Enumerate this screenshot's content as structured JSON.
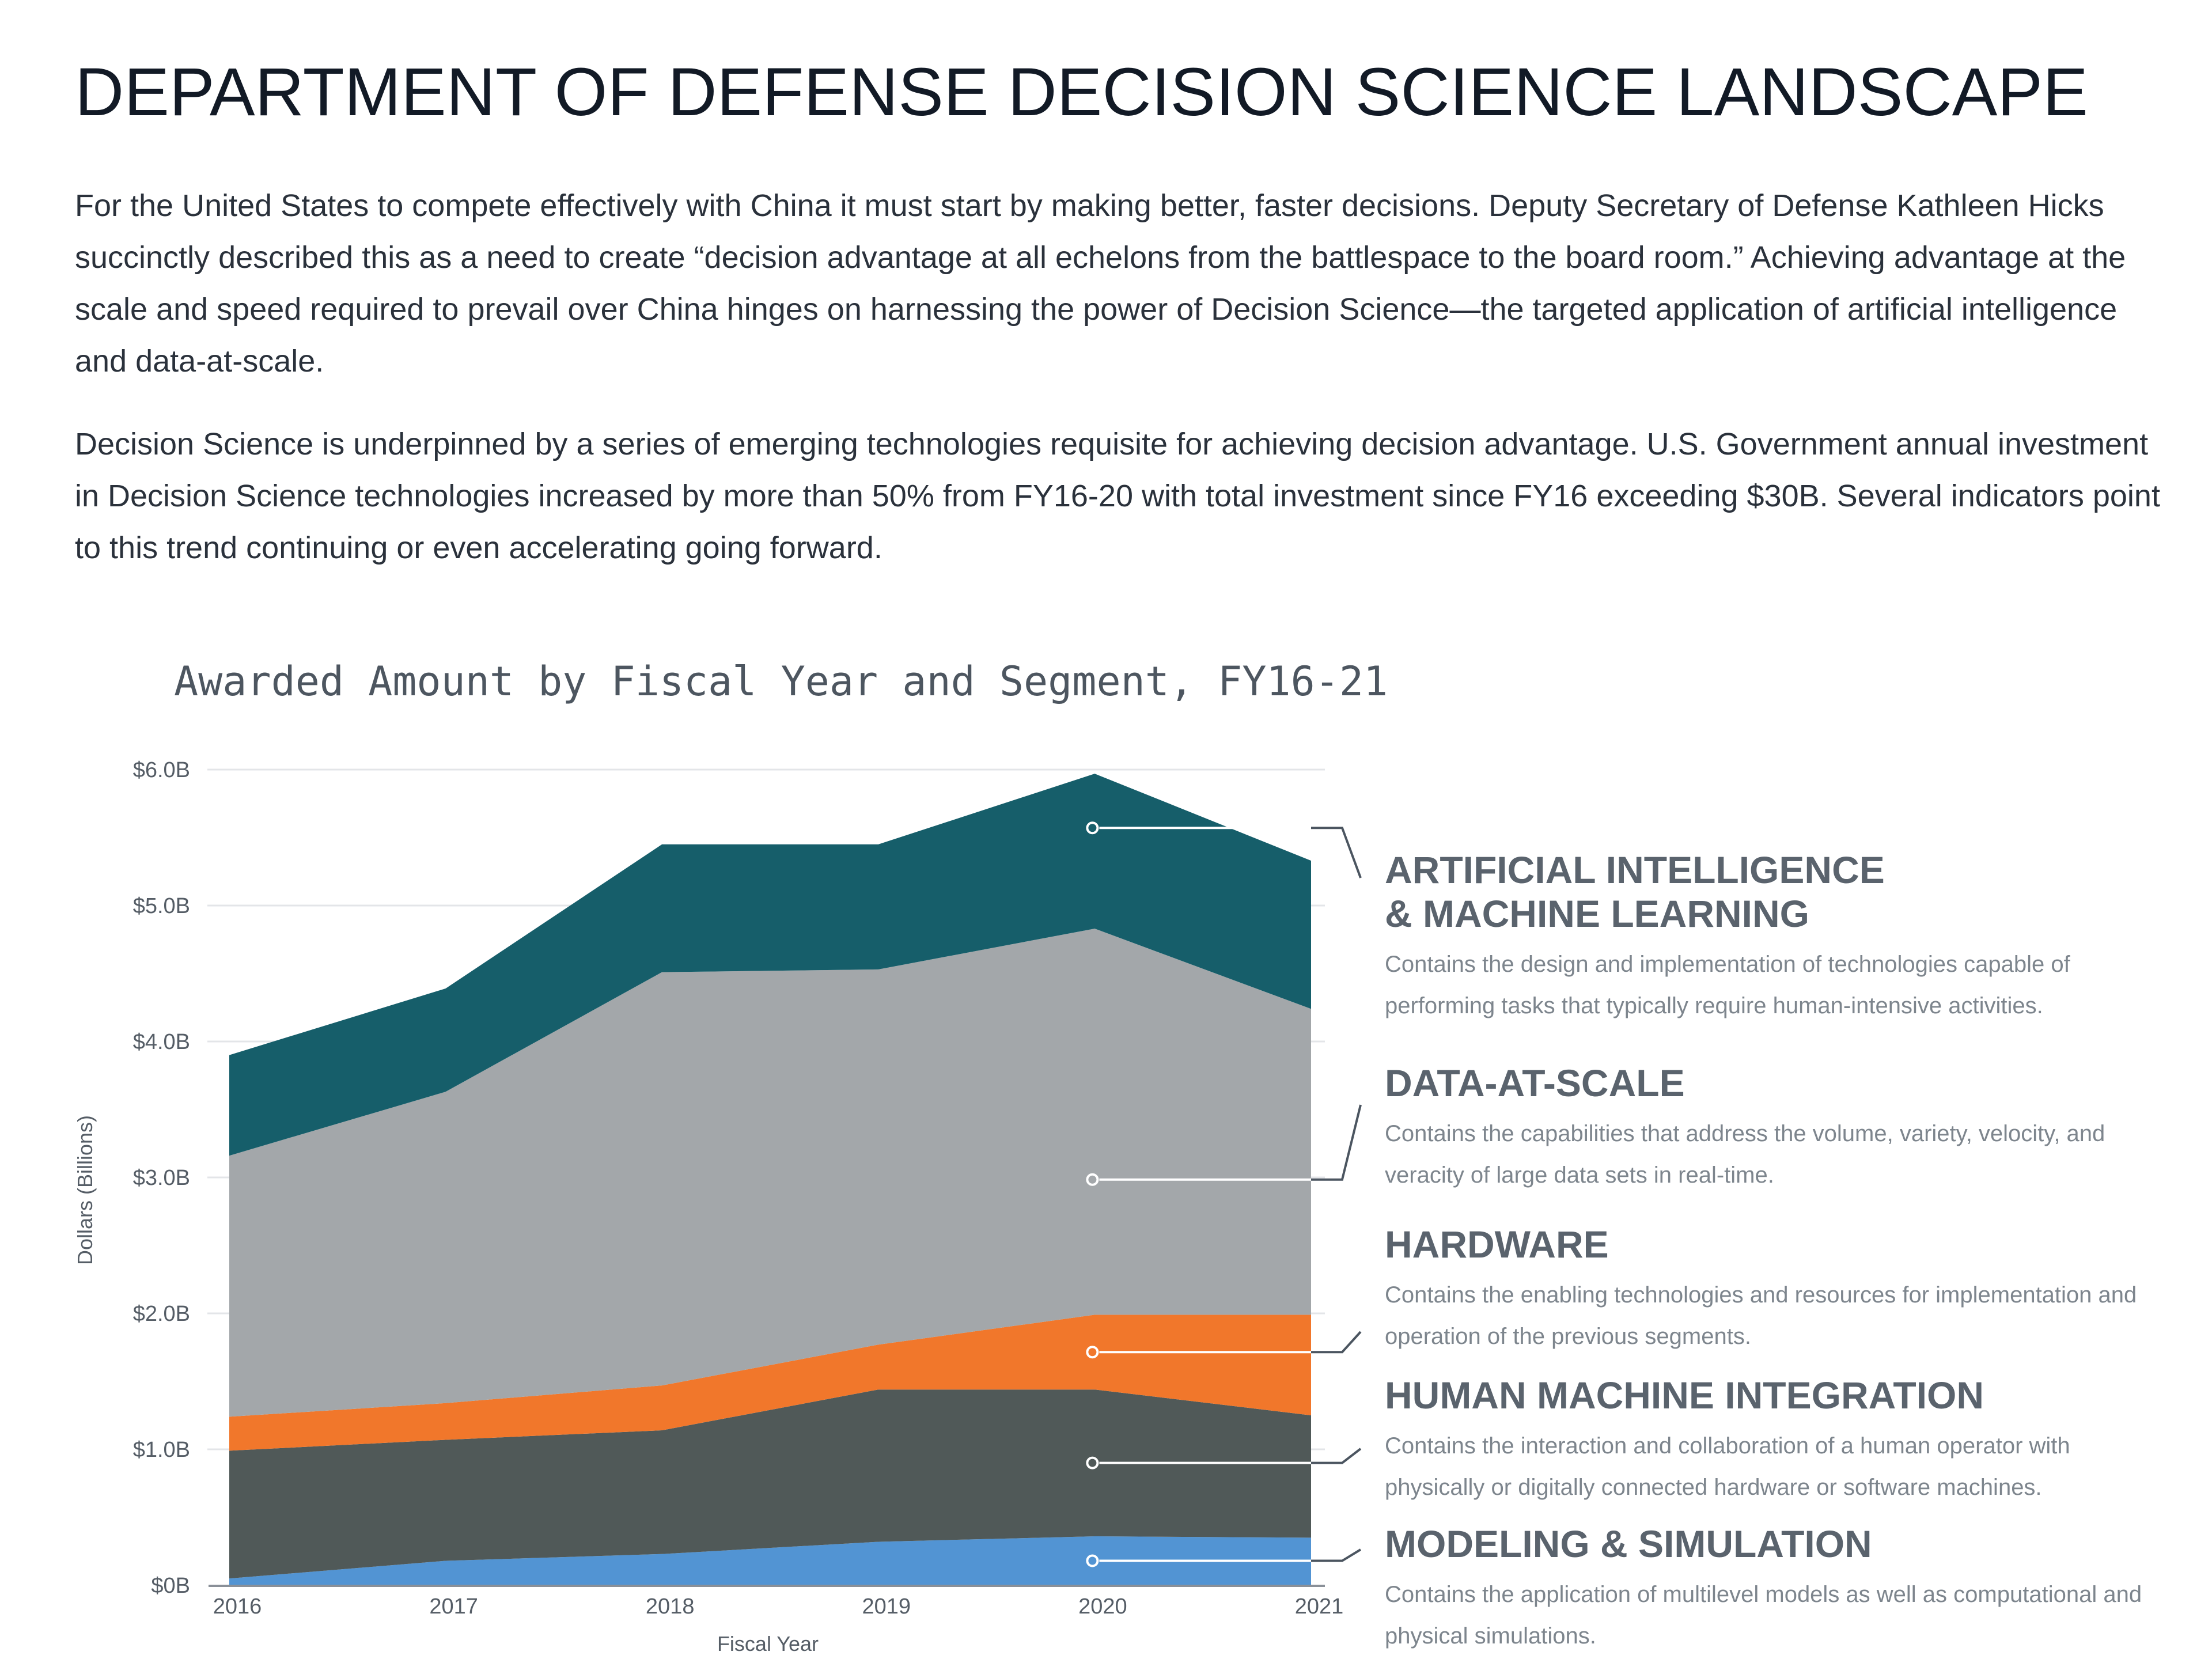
{
  "page": {
    "title": "DEPARTMENT OF DEFENSE DECISION SCIENCE LANDSCAPE",
    "paragraphs": [
      "For the United States to compete effectively with China it must start by making better, faster decisions. Deputy Secretary of Defense Kathleen Hicks succinctly described this as a need to create “decision advantage at all echelons from the battlespace to the board room.” Achieving advantage at the scale and speed required to prevail over China hinges on harnessing the power of Decision Science—the targeted application of artificial intelligence and data-at-scale.",
      "Decision Science is underpinned by a series of emerging technologies requisite for achieving decision advantage. U.S. Government annual investment in Decision Science technologies increased by more than 50% from FY16-20 with total investment since FY16 exceeding $30B. Several indicators point to this trend continuing or even accelerating going forward."
    ]
  },
  "chart_data": {
    "type": "area",
    "stacked": true,
    "title": "Awarded Amount by Fiscal Year and Segment, FY16-21",
    "xlabel": "Fiscal Year",
    "ylabel": "Dollars (Billions)",
    "x": [
      "2016",
      "2017",
      "2018",
      "2019",
      "2020",
      "2021"
    ],
    "ylim": [
      0,
      6
    ],
    "yticks": [
      0,
      1,
      2,
      3,
      4,
      5,
      6
    ],
    "ytick_labels": [
      "$0B",
      "$1.0B",
      "$2.0B",
      "$3.0B",
      "$4.0B",
      "$5.0B",
      "$6.0B"
    ],
    "grid": true,
    "legend_position": "right",
    "series": [
      {
        "name": "MODELING & SIMULATION",
        "description": "Contains the application of multilevel models as well as computational and physical simulations.",
        "color": "#5294d3",
        "values": [
          0.05,
          0.18,
          0.23,
          0.32,
          0.36,
          0.35
        ]
      },
      {
        "name": "HUMAN MACHINE INTEGRATION",
        "description": "Contains the interaction and collaboration of a human operator with physically or digitally connected hardware or software machines.",
        "color": "#505958",
        "values": [
          0.94,
          0.89,
          0.91,
          1.12,
          1.08,
          0.9
        ]
      },
      {
        "name": "HARDWARE",
        "description": "Contains the enabling technologies and resources for implementation and operation of the previous segments.",
        "color": "#f1772b",
        "values": [
          0.25,
          0.27,
          0.33,
          0.33,
          0.55,
          0.74
        ]
      },
      {
        "name": "DATA-AT-SCALE",
        "description": "Contains the capabilities that address the volume, variety, velocity, and veracity of large data sets in real-time.",
        "color": "#a3a7aa",
        "values": [
          1.92,
          2.29,
          3.04,
          2.76,
          2.84,
          2.25
        ]
      },
      {
        "name": "ARTIFICIAL INTELLIGENCE & MACHINE LEARNING",
        "name_lines": [
          "ARTIFICIAL INTELLIGENCE",
          "& MACHINE LEARNING"
        ],
        "description": "Contains the design and implementation of technologies capable of performing tasks that typically require human-intensive activities.",
        "color": "#165e6a",
        "values": [
          0.74,
          0.76,
          0.94,
          0.92,
          1.14,
          1.09
        ]
      }
    ]
  }
}
